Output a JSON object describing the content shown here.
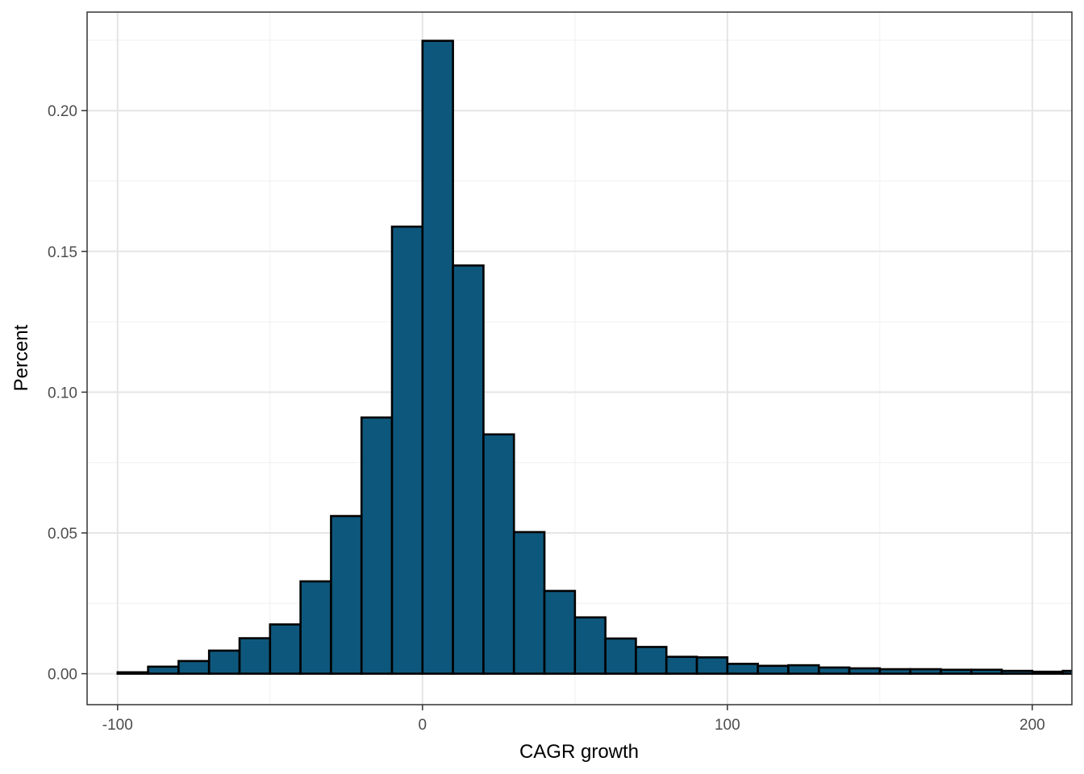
{
  "chart_data": {
    "type": "bar",
    "subtype": "histogram",
    "xlabel": "CAGR growth",
    "ylabel": "Percent",
    "xlim": [
      -110,
      213
    ],
    "ylim": [
      -0.011,
      0.235
    ],
    "xticks": [
      -100,
      0,
      100,
      200
    ],
    "xtick_labels": [
      "-100",
      "0",
      "100",
      "200"
    ],
    "yticks": [
      0.0,
      0.05,
      0.1,
      0.15,
      0.2
    ],
    "ytick_labels": [
      "0.00",
      "0.05",
      "0.10",
      "0.15",
      "0.20"
    ],
    "bin_width": 10,
    "bin_centers": [
      -95,
      -85,
      -75,
      -65,
      -55,
      -45,
      -35,
      -25,
      -15,
      -5,
      5,
      15,
      25,
      35,
      45,
      55,
      65,
      75,
      85,
      95,
      105,
      115,
      125,
      135,
      145,
      155,
      165,
      175,
      185,
      195,
      205,
      215
    ],
    "values": [
      0.0005,
      0.0025,
      0.0045,
      0.0082,
      0.0126,
      0.0175,
      0.0328,
      0.056,
      0.091,
      0.1588,
      0.2248,
      0.145,
      0.085,
      0.0503,
      0.0294,
      0.02,
      0.0125,
      0.0095,
      0.006,
      0.0058,
      0.0035,
      0.0028,
      0.003,
      0.0022,
      0.0019,
      0.0016,
      0.0016,
      0.0014,
      0.0014,
      0.001,
      0.0007,
      0.001
    ],
    "bar_color": "#0e577c",
    "bar_outline": "#000000",
    "grid": true,
    "theme": "bw"
  }
}
